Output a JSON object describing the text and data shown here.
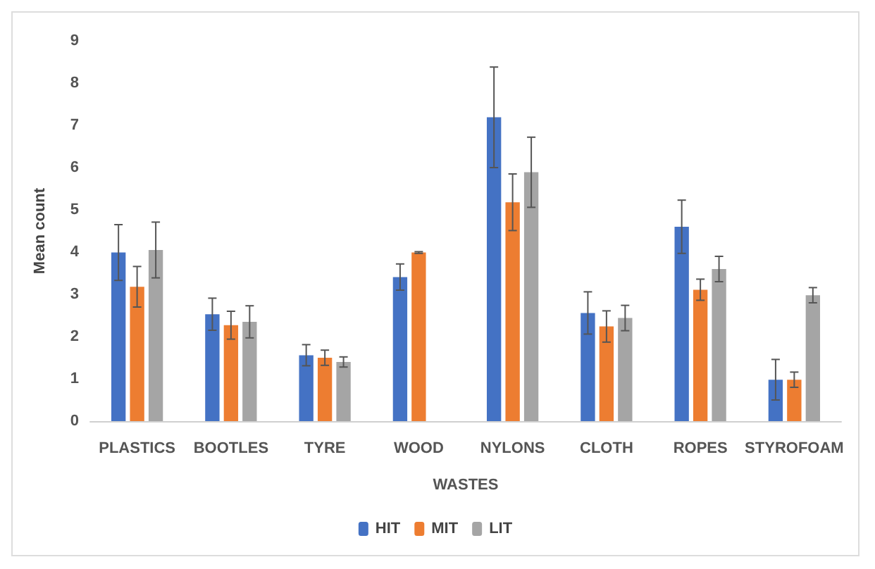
{
  "chart_data": {
    "type": "bar",
    "xlabel": "WASTES",
    "ylabel": "Mean count",
    "categories": [
      "PLASTICS",
      "BOOTLES",
      "TYRE",
      "WOOD",
      "NYLONS",
      "CLOTH",
      "ROPES",
      "STYROFOAM"
    ],
    "series": [
      {
        "name": "HIT",
        "color": "#4472c4",
        "values": [
          3.99,
          2.53,
          1.56,
          3.41,
          7.19,
          2.56,
          4.6,
          0.98
        ],
        "errors": [
          0.66,
          0.38,
          0.25,
          0.31,
          1.19,
          0.5,
          0.63,
          0.48
        ]
      },
      {
        "name": "MIT",
        "color": "#ed7d31",
        "values": [
          3.18,
          2.27,
          1.5,
          3.99,
          5.18,
          2.24,
          3.11,
          0.98
        ],
        "errors": [
          0.48,
          0.33,
          0.18,
          0.02,
          0.67,
          0.37,
          0.25,
          0.18
        ]
      },
      {
        "name": "LIT",
        "color": "#a5a5a5",
        "values": [
          4.05,
          2.35,
          1.4,
          null,
          5.89,
          2.44,
          3.6,
          2.98
        ],
        "errors": [
          0.66,
          0.38,
          0.12,
          null,
          0.83,
          0.3,
          0.3,
          0.18
        ]
      }
    ],
    "ylim": [
      0,
      9
    ],
    "yticks": [
      0,
      1,
      2,
      3,
      4,
      5,
      6,
      7,
      8,
      9
    ],
    "grid": false,
    "legend": "bottom"
  }
}
